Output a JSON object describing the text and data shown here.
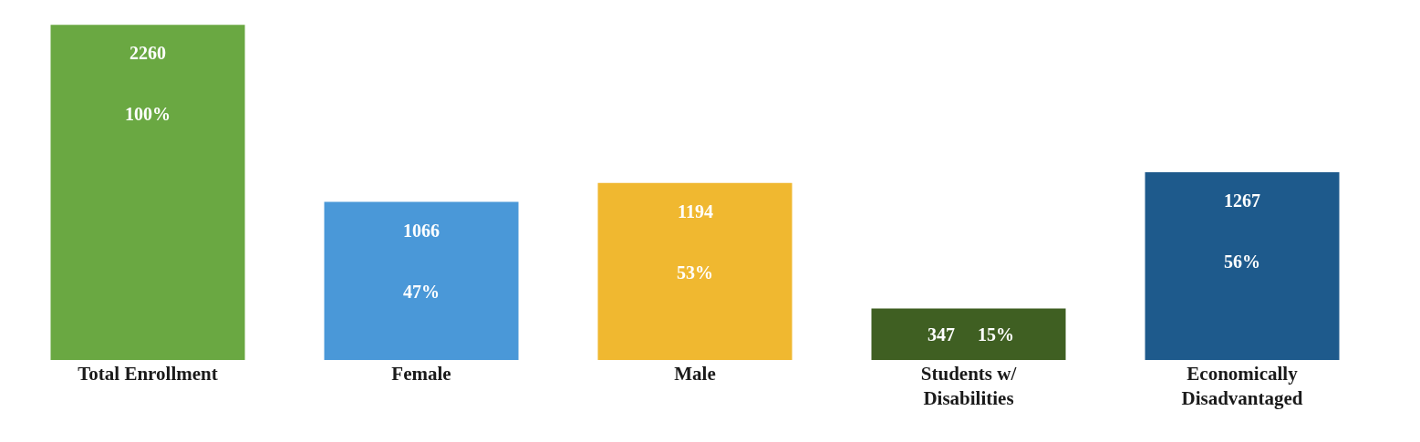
{
  "chart_data": {
    "type": "bar",
    "categories": [
      "Total Enrollment",
      "Female",
      "Male",
      "Students w/ Disabilities",
      "Economically Disadvantaged"
    ],
    "values": [
      2260,
      1066,
      1194,
      347,
      1267
    ],
    "colors": [
      "#6aa842",
      "#4a98d8",
      "#f0b830",
      "#3f5f22",
      "#1e5a8c"
    ],
    "data_labels": true,
    "annotations": [
      "100%",
      "47%",
      "53%",
      "15%",
      "56%"
    ],
    "grid": false
  }
}
